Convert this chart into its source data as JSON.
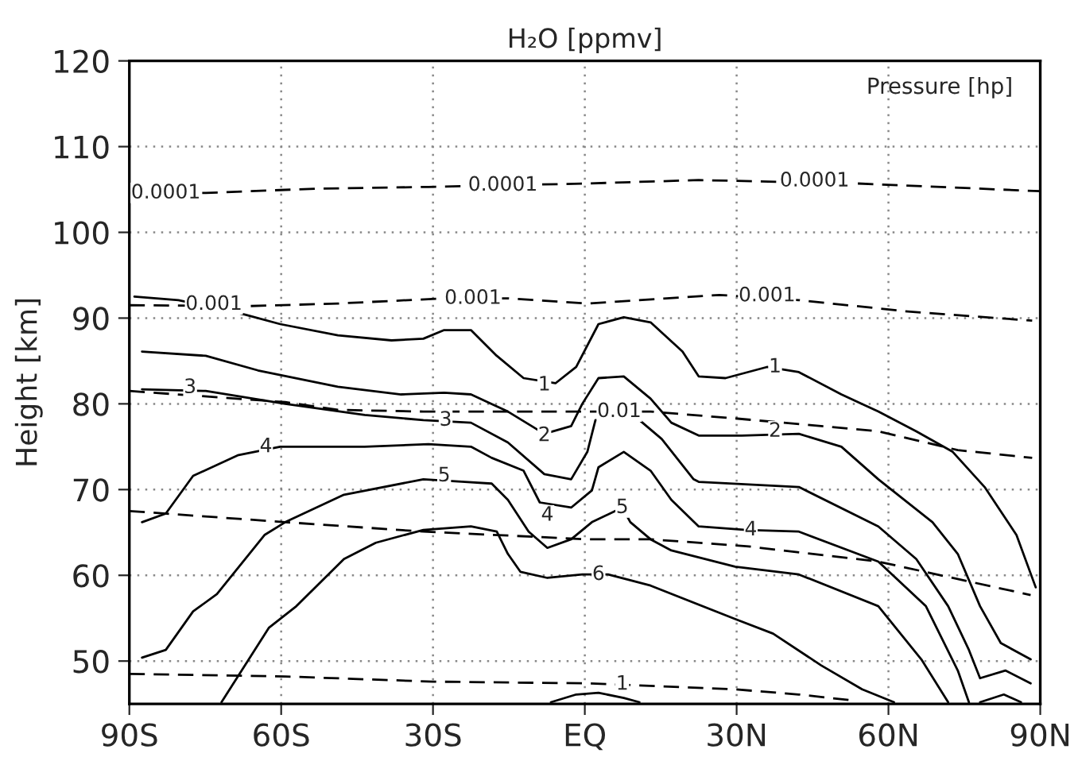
{
  "chart_data": {
    "type": "line",
    "title": "H₂O [ppmv]",
    "ylabel": "Height [km]",
    "xlim": [
      -90,
      90
    ],
    "xticks": [
      {
        "value": -90,
        "label": "90S"
      },
      {
        "value": -60,
        "label": "60S"
      },
      {
        "value": -30,
        "label": "30S"
      },
      {
        "value": 0,
        "label": "EQ"
      },
      {
        "value": 30,
        "label": "30N"
      },
      {
        "value": 60,
        "label": "60N"
      },
      {
        "value": 90,
        "label": "90N"
      }
    ],
    "ylim": [
      45,
      120
    ],
    "yticks": [
      50,
      60,
      70,
      80,
      90,
      100,
      110,
      120
    ],
    "grid": true,
    "series": [
      {
        "color": "#000000",
        "line_style": "solid",
        "x": [
          -89,
          -80.3,
          -67.1,
          -60.2,
          -48.8,
          -38.2,
          -31.9,
          -27.8,
          -22.5,
          -17.4,
          -12.1,
          -5.8,
          -1.7,
          2.7,
          7.7,
          13.0,
          19.3,
          22.5,
          27.8,
          36.0,
          42.3,
          50.7,
          58.0,
          65.5,
          72.7,
          79.0,
          85.3,
          89.1
        ],
        "values": [
          92.5,
          92.1,
          90.4,
          89.3,
          88.0,
          87.4,
          87.6,
          88.6,
          88.6,
          85.6,
          83.0,
          82.4,
          84.3,
          89.3,
          90.1,
          89.5,
          86.1,
          83.2,
          83.0,
          84.3,
          83.7,
          81.1,
          79.1,
          76.8,
          74.4,
          70.3,
          64.7,
          58.6
        ]
      },
      {
        "color": "#000000",
        "line_style": "solid",
        "x": [
          -87.5,
          -74.9,
          -64.6,
          -48.8,
          -36.3,
          -27.8,
          -22.5,
          -15.2,
          -8.0,
          -2.7,
          -0.5,
          2.7,
          7.7,
          13.0,
          17.1,
          22.5,
          31.0,
          42.3,
          50.7,
          58.0,
          68.7,
          73.7,
          78.1,
          82.2,
          88.1
        ],
        "values": [
          86.1,
          85.6,
          83.9,
          82.0,
          81.1,
          81.3,
          81.1,
          79.1,
          76.5,
          77.4,
          80.0,
          83.0,
          83.2,
          80.6,
          77.8,
          76.3,
          76.3,
          76.5,
          75.0,
          71.2,
          66.2,
          62.5,
          56.4,
          52.1,
          50.2
        ]
      },
      {
        "color": "#000000",
        "line_style": "solid",
        "x": [
          -87.5,
          -74.9,
          -59.2,
          -43.5,
          -31.9,
          -22.5,
          -15.2,
          -8.0,
          -2.7,
          0.5,
          2.1,
          10.8,
          15.2,
          21.5,
          22.5,
          42.3,
          58.0,
          65.5,
          71.8,
          75.9,
          78.1,
          83.1,
          88.1
        ],
        "values": [
          81.7,
          81.5,
          80.0,
          78.7,
          78.1,
          77.8,
          75.5,
          71.8,
          71.2,
          74.4,
          78.1,
          78.1,
          75.9,
          71.2,
          70.9,
          70.3,
          65.7,
          61.9,
          56.4,
          51.3,
          48.0,
          48.9,
          47.4
        ]
      },
      {
        "color": "#000000",
        "line_style": "solid",
        "x": [
          -87.5,
          -82.8,
          -77.4,
          -68.6,
          -60.2,
          -43.5,
          -30.9,
          -22.5,
          -18.4,
          -12.1,
          -8.9,
          -2.7,
          1.4,
          2.7,
          7.7,
          13.0,
          17.1,
          22.5,
          31.9,
          42.3,
          58.0,
          67.4,
          73.7,
          75.9
        ],
        "values": [
          66.2,
          67.2,
          71.6,
          74.0,
          75.0,
          75.0,
          75.3,
          75.0,
          73.7,
          72.2,
          68.5,
          67.9,
          69.9,
          72.6,
          74.4,
          72.2,
          68.8,
          65.7,
          65.3,
          65.1,
          61.6,
          56.4,
          48.9,
          45.2
        ]
      },
      {
        "color": "#000000",
        "line_style": "solid",
        "x": [
          -87.5,
          -82.8,
          -77.4,
          -72.7,
          -63.3,
          -59.2,
          -47.6,
          -31.9,
          -23.7,
          -18.4,
          -15.2,
          -11.1,
          -7.4,
          -2.7,
          1.4,
          7.4,
          9.0,
          13.0,
          17.1,
          29.7,
          42.3,
          58.0,
          66.5,
          71.8
        ],
        "values": [
          50.4,
          51.3,
          55.8,
          57.8,
          64.7,
          66.2,
          69.4,
          71.2,
          70.9,
          70.7,
          68.8,
          65.1,
          63.2,
          64.2,
          66.2,
          67.9,
          66.2,
          64.2,
          62.9,
          61.0,
          60.1,
          56.4,
          50.2,
          45.2
        ]
      },
      {
        "color": "#000000",
        "line_style": "solid",
        "x": [
          -71.8,
          -66.4,
          -62.4,
          -57.0,
          -47.6,
          -41.3,
          -31.9,
          -22.5,
          -17.4,
          -15.2,
          -12.7,
          -7.4,
          -0.5,
          4.6,
          13.0,
          29.7,
          37.2,
          46.7,
          54.8,
          61.1
        ],
        "values": [
          45.2,
          50.2,
          53.9,
          56.4,
          61.9,
          63.8,
          65.3,
          65.7,
          65.1,
          62.5,
          60.4,
          59.7,
          60.1,
          60.1,
          58.8,
          54.9,
          53.2,
          49.5,
          46.7,
          45.2
        ]
      },
      {
        "color": "#000000",
        "line_style": "solid",
        "x": [
          -6.7,
          -1.7,
          2.7,
          7.7,
          10.8
        ],
        "values": [
          45.2,
          46.1,
          46.3,
          45.7,
          45.2
        ]
      },
      {
        "color": "#000000",
        "line_style": "solid",
        "x": [
          78.1,
          82.8,
          86.2
        ],
        "values": [
          45.2,
          46.1,
          45.2
        ]
      },
      {
        "color": "#000000",
        "line_style": "dashed",
        "x": [
          -90,
          -74.9,
          -52.9,
          -30.9,
          0.5,
          22.5,
          53.9,
          90
        ],
        "values": [
          104.6,
          104.6,
          105.1,
          105.3,
          105.7,
          106.1,
          105.7,
          104.8
        ]
      },
      {
        "color": "#000000",
        "line_style": "dashed",
        "x": [
          -90,
          -66.4,
          -48.8,
          -27.8,
          -15.2,
          0.5,
          26.6,
          42.3,
          63.3,
          88.4
        ],
        "values": [
          91.5,
          91.4,
          91.7,
          92.3,
          92.3,
          91.7,
          92.7,
          92.1,
          90.8,
          89.7
        ]
      },
      {
        "color": "#000000",
        "line_style": "dashed",
        "x": [
          -90,
          -59.2,
          -48.8,
          -31.9,
          0.5,
          13.0,
          29.7,
          58.0,
          73.7,
          88.4
        ],
        "values": [
          81.5,
          80.2,
          79.3,
          79.1,
          79.1,
          79.1,
          78.3,
          76.8,
          74.6,
          73.7
        ]
      },
      {
        "color": "#000000",
        "line_style": "dashed",
        "x": [
          -90,
          -59.2,
          -31.9,
          0.5,
          13.0,
          31.9,
          58.0,
          88.1
        ],
        "values": [
          67.5,
          66.2,
          65.1,
          64.2,
          64.2,
          63.4,
          61.6,
          57.7
        ]
      },
      {
        "color": "#000000",
        "line_style": "dashed",
        "x": [
          -90,
          -59.2,
          -30.0,
          0.5,
          29.7,
          42.3,
          53.0
        ],
        "values": [
          48.5,
          48.2,
          47.6,
          47.4,
          46.7,
          46.1,
          45.4
        ]
      }
    ],
    "annotations": [
      "Pressure [hp]",
      {
        "text": "0.0001",
        "x": -82.8,
        "y": 104.6
      },
      {
        "text": "0.0001",
        "x": -16.2,
        "y": 105.5
      },
      {
        "text": "0.0001",
        "x": 45.4,
        "y": 106.0
      },
      {
        "text": "0.001",
        "x": -73.3,
        "y": 91.6
      },
      {
        "text": "0.001",
        "x": -22.1,
        "y": 92.3
      },
      {
        "text": "0.001",
        "x": 36.0,
        "y": 92.6
      },
      {
        "text": "0.01",
        "x": 6.8,
        "y": 79.1
      },
      {
        "text": "1",
        "x": 7.4,
        "y": 47.3
      },
      {
        "text": "1",
        "x": -8.0,
        "y": 82.2
      },
      {
        "text": "1",
        "x": 37.6,
        "y": 84.3
      },
      {
        "text": "2",
        "x": -8.0,
        "y": 76.3
      },
      {
        "text": "2",
        "x": 37.6,
        "y": 76.8
      },
      {
        "text": "3",
        "x": -78.0,
        "y": 81.9
      },
      {
        "text": "3",
        "x": -27.5,
        "y": 78.1
      },
      {
        "text": "4",
        "x": -63.0,
        "y": 75.0
      },
      {
        "text": "4",
        "x": -7.4,
        "y": 67.0
      },
      {
        "text": "4",
        "x": 32.8,
        "y": 65.3
      },
      {
        "text": "5",
        "x": -27.8,
        "y": 71.6
      },
      {
        "text": "5",
        "x": 7.4,
        "y": 67.9
      },
      {
        "text": "6",
        "x": 2.7,
        "y": 60.1
      }
    ]
  }
}
